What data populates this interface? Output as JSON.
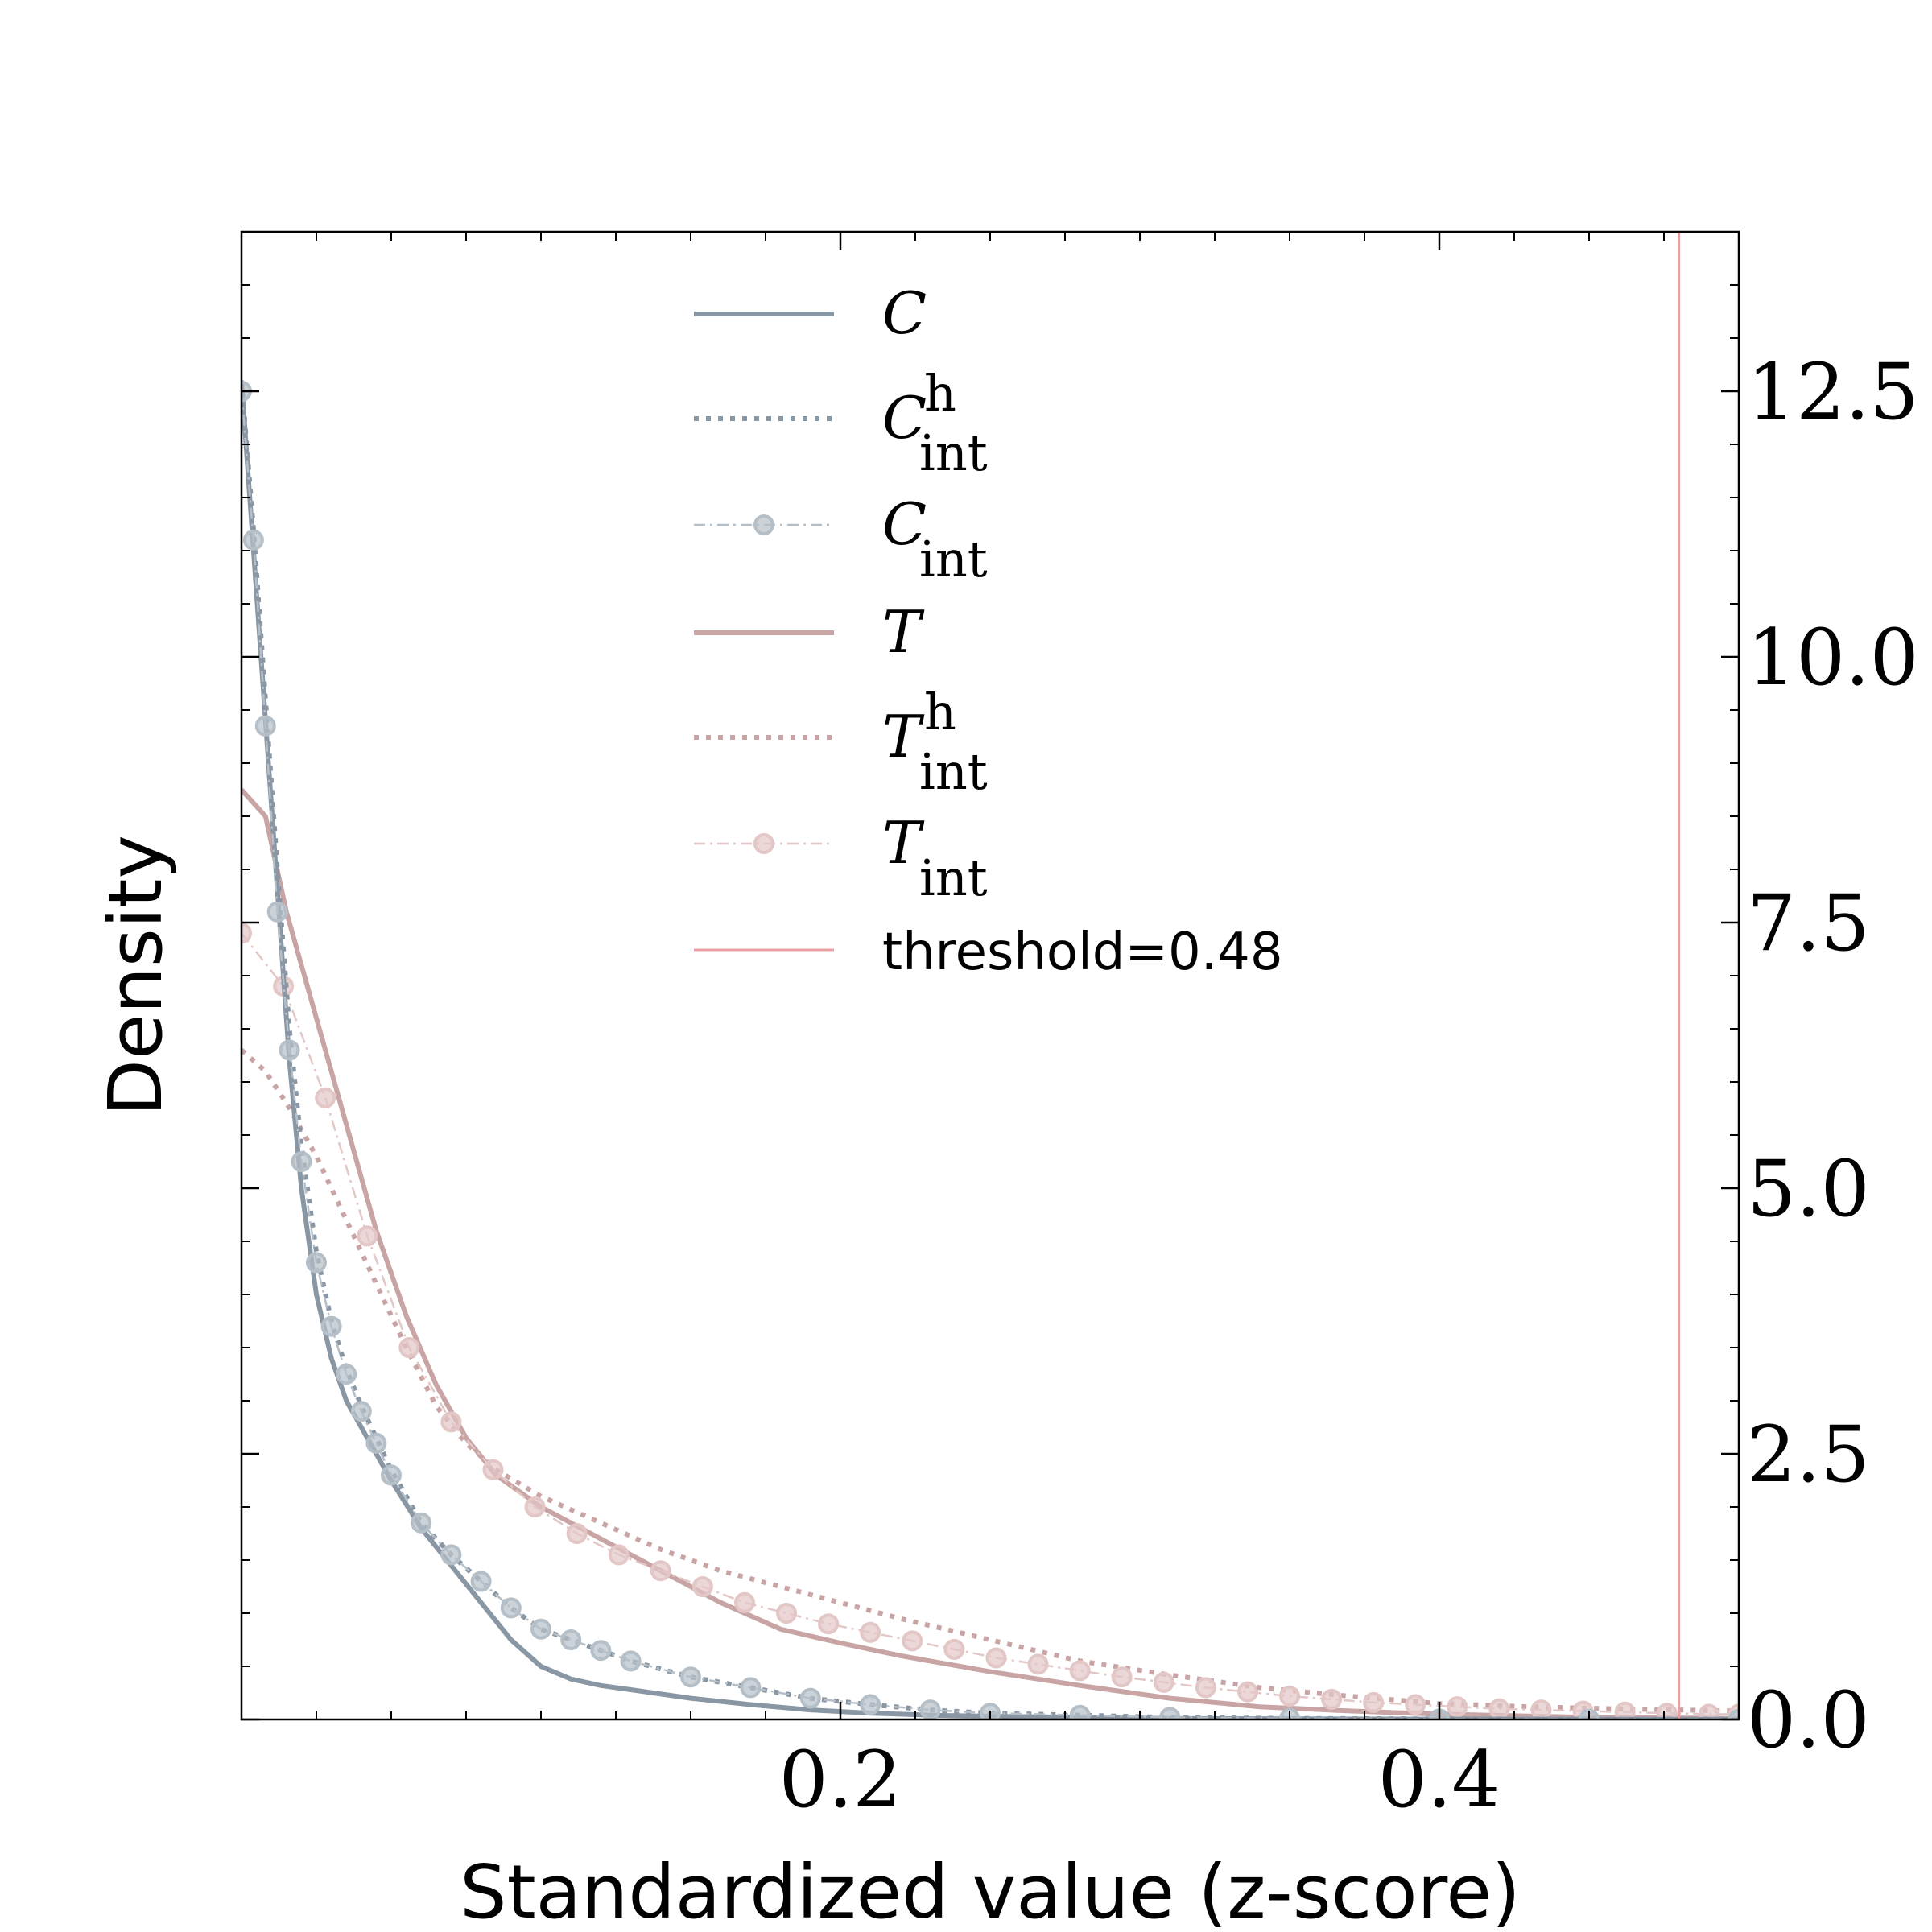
{
  "chart_data": {
    "type": "line",
    "title": "",
    "xlabel": "Standardized value (z-score)",
    "ylabel": "Density",
    "xlim": [
      0.0,
      0.5
    ],
    "ylim": [
      0.0,
      14.0
    ],
    "x_ticks": [
      {
        "value": 0.2,
        "label": "0.2"
      },
      {
        "value": 0.4,
        "label": "0.4"
      }
    ],
    "y_ticks": [
      {
        "value": 0.0,
        "label": "0.0"
      },
      {
        "value": 2.5,
        "label": "2.5"
      },
      {
        "value": 5.0,
        "label": "5.0"
      },
      {
        "value": 7.5,
        "label": "7.5"
      },
      {
        "value": 10.0,
        "label": "10.0"
      },
      {
        "value": 12.5,
        "label": "12.5"
      }
    ],
    "y_axis_side": "right",
    "grid": false,
    "legend_position": "top-center",
    "threshold": {
      "value": 0.48,
      "label": "threshold=0.48",
      "color": "#e8a0a4"
    },
    "series": [
      {
        "name": "C",
        "sub": "",
        "sup": "",
        "style": "solid",
        "color": "#8996a3",
        "x": [
          0.0,
          0.004,
          0.008,
          0.012,
          0.016,
          0.02,
          0.025,
          0.03,
          0.035,
          0.04,
          0.045,
          0.05,
          0.06,
          0.07,
          0.08,
          0.09,
          0.1,
          0.11,
          0.12,
          0.13,
          0.15,
          0.17,
          0.19,
          0.21,
          0.23,
          0.25,
          0.28,
          0.31,
          0.35,
          0.4,
          0.45,
          0.5
        ],
        "y": [
          12.6,
          11.0,
          9.4,
          7.8,
          6.2,
          5.0,
          4.0,
          3.4,
          3.0,
          2.75,
          2.5,
          2.25,
          1.8,
          1.45,
          1.1,
          0.75,
          0.5,
          0.38,
          0.32,
          0.28,
          0.2,
          0.14,
          0.09,
          0.06,
          0.04,
          0.03,
          0.02,
          0.01,
          0.005,
          0.003,
          0.002,
          0.001
        ]
      },
      {
        "name": "C",
        "sub": "int",
        "sup": "h",
        "style": "dotted",
        "color": "#8996a3",
        "x": [
          0.0,
          0.004,
          0.008,
          0.012,
          0.016,
          0.02,
          0.025,
          0.03,
          0.035,
          0.04,
          0.045,
          0.05,
          0.06,
          0.07,
          0.08,
          0.09,
          0.1,
          0.11,
          0.12,
          0.13,
          0.15,
          0.17,
          0.19,
          0.21,
          0.23,
          0.25,
          0.28,
          0.31,
          0.35,
          0.4,
          0.45,
          0.5
        ],
        "y": [
          12.6,
          11.2,
          9.6,
          8.0,
          6.5,
          5.4,
          4.4,
          3.75,
          3.3,
          2.95,
          2.65,
          2.35,
          1.85,
          1.55,
          1.3,
          1.05,
          0.85,
          0.75,
          0.65,
          0.55,
          0.4,
          0.3,
          0.2,
          0.14,
          0.09,
          0.06,
          0.04,
          0.02,
          0.01,
          0.005,
          0.003,
          0.002
        ]
      },
      {
        "name": "C",
        "sub": "int",
        "sup": "",
        "style": "dashdot-marker",
        "color": "#b5bfc8",
        "x": [
          0.0,
          0.004,
          0.008,
          0.012,
          0.016,
          0.02,
          0.025,
          0.03,
          0.035,
          0.04,
          0.045,
          0.05,
          0.06,
          0.07,
          0.08,
          0.09,
          0.1,
          0.11,
          0.12,
          0.13,
          0.15,
          0.17,
          0.19,
          0.21,
          0.23,
          0.25,
          0.28,
          0.31,
          0.35,
          0.4,
          0.45,
          0.5
        ],
        "y": [
          12.5,
          11.1,
          9.35,
          7.6,
          6.3,
          5.25,
          4.3,
          3.7,
          3.25,
          2.9,
          2.6,
          2.3,
          1.85,
          1.55,
          1.3,
          1.05,
          0.85,
          0.75,
          0.65,
          0.55,
          0.4,
          0.3,
          0.2,
          0.14,
          0.09,
          0.06,
          0.04,
          0.02,
          0.01,
          0.005,
          0.003,
          0.002
        ]
      },
      {
        "name": "T",
        "sub": "",
        "sup": "",
        "style": "solid",
        "color": "#c8a4a4",
        "x": [
          0.0,
          0.008,
          0.015,
          0.025,
          0.035,
          0.045,
          0.055,
          0.065,
          0.075,
          0.085,
          0.1,
          0.12,
          0.14,
          0.16,
          0.18,
          0.2,
          0.22,
          0.25,
          0.28,
          0.31,
          0.34,
          0.37,
          0.4,
          0.45,
          0.5
        ],
        "y": [
          8.75,
          8.5,
          7.6,
          6.6,
          5.6,
          4.6,
          3.8,
          3.15,
          2.65,
          2.3,
          2.0,
          1.7,
          1.4,
          1.1,
          0.85,
          0.72,
          0.6,
          0.45,
          0.32,
          0.2,
          0.12,
          0.08,
          0.05,
          0.02,
          0.01
        ]
      },
      {
        "name": "T",
        "sub": "int",
        "sup": "h",
        "style": "dotted",
        "color": "#c8a4a4",
        "x": [
          0.0,
          0.008,
          0.015,
          0.025,
          0.035,
          0.045,
          0.055,
          0.065,
          0.075,
          0.085,
          0.1,
          0.12,
          0.14,
          0.16,
          0.18,
          0.2,
          0.22,
          0.25,
          0.28,
          0.31,
          0.34,
          0.37,
          0.4,
          0.43,
          0.46,
          0.5
        ],
        "y": [
          6.3,
          6.1,
          5.8,
          5.3,
          4.7,
          4.1,
          3.5,
          2.95,
          2.6,
          2.35,
          2.1,
          1.85,
          1.6,
          1.4,
          1.25,
          1.1,
          0.95,
          0.75,
          0.55,
          0.42,
          0.3,
          0.22,
          0.15,
          0.12,
          0.1,
          0.08
        ]
      },
      {
        "name": "T",
        "sub": "int",
        "sup": "",
        "style": "dashdot-marker",
        "color": "#e3c6c6",
        "x": [
          0.0,
          0.014,
          0.028,
          0.042,
          0.056,
          0.07,
          0.084,
          0.098,
          0.112,
          0.126,
          0.14,
          0.154,
          0.168,
          0.182,
          0.196,
          0.21,
          0.224,
          0.238,
          0.252,
          0.266,
          0.28,
          0.294,
          0.308,
          0.322,
          0.336,
          0.35,
          0.364,
          0.378,
          0.392,
          0.406,
          0.42,
          0.434,
          0.448,
          0.462,
          0.476,
          0.49,
          0.5
        ],
        "y": [
          7.4,
          6.9,
          5.85,
          4.55,
          3.5,
          2.8,
          2.35,
          2.0,
          1.75,
          1.55,
          1.4,
          1.25,
          1.1,
          1.0,
          0.9,
          0.82,
          0.74,
          0.66,
          0.58,
          0.52,
          0.46,
          0.4,
          0.35,
          0.3,
          0.26,
          0.22,
          0.19,
          0.16,
          0.14,
          0.12,
          0.1,
          0.09,
          0.08,
          0.07,
          0.06,
          0.05,
          0.05
        ]
      }
    ]
  }
}
